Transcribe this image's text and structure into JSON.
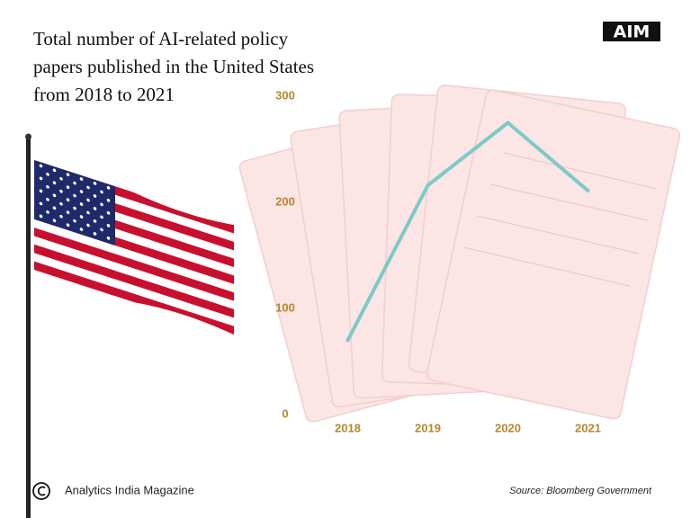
{
  "chart_data": {
    "type": "line",
    "title": "Total number of AI-related policy papers published in the United States from 2018 to 2021",
    "logo": "AIM",
    "categories": [
      "2018",
      "2019",
      "2020",
      "2021"
    ],
    "series": [
      {
        "name": "AI-related policy papers",
        "color": "#7ccac5",
        "values": [
          70,
          216,
          275,
          211
        ]
      }
    ],
    "ylim": [
      0,
      300
    ],
    "yticks": [
      0,
      100,
      200,
      300
    ],
    "grid": false,
    "publisher": "Analytics India Magazine",
    "source": "Source: Bloomberg Government"
  }
}
